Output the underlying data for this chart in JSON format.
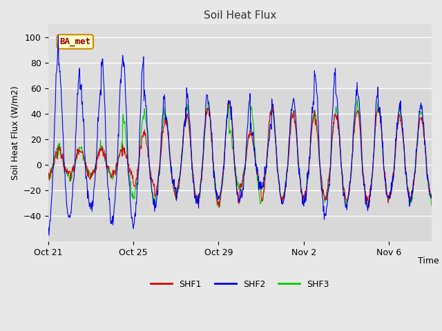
{
  "title": "Soil Heat Flux",
  "ylabel": "Soil Heat Flux (W/m2)",
  "xlabel": "Time",
  "ylim": [
    -60,
    110
  ],
  "yticks": [
    -40,
    -20,
    0,
    20,
    40,
    60,
    80,
    100
  ],
  "xtick_labels": [
    "Oct 21",
    "Oct 25",
    "Oct 29",
    "Nov 2",
    "Nov 6"
  ],
  "background_color": "#e8e8e8",
  "plot_bg_color_top": "#e0e0e0",
  "plot_bg_color": "#d8d8d8",
  "title_color": "#333333",
  "annotation_text": "BA_met",
  "annotation_bg": "#ffffcc",
  "annotation_border": "#cc8800",
  "annotation_text_color": "#880000",
  "line_colors": {
    "SHF1": "#dd0000",
    "SHF2": "#0000ee",
    "SHF3": "#00cc00"
  },
  "line_width": 0.8,
  "seed": 42
}
